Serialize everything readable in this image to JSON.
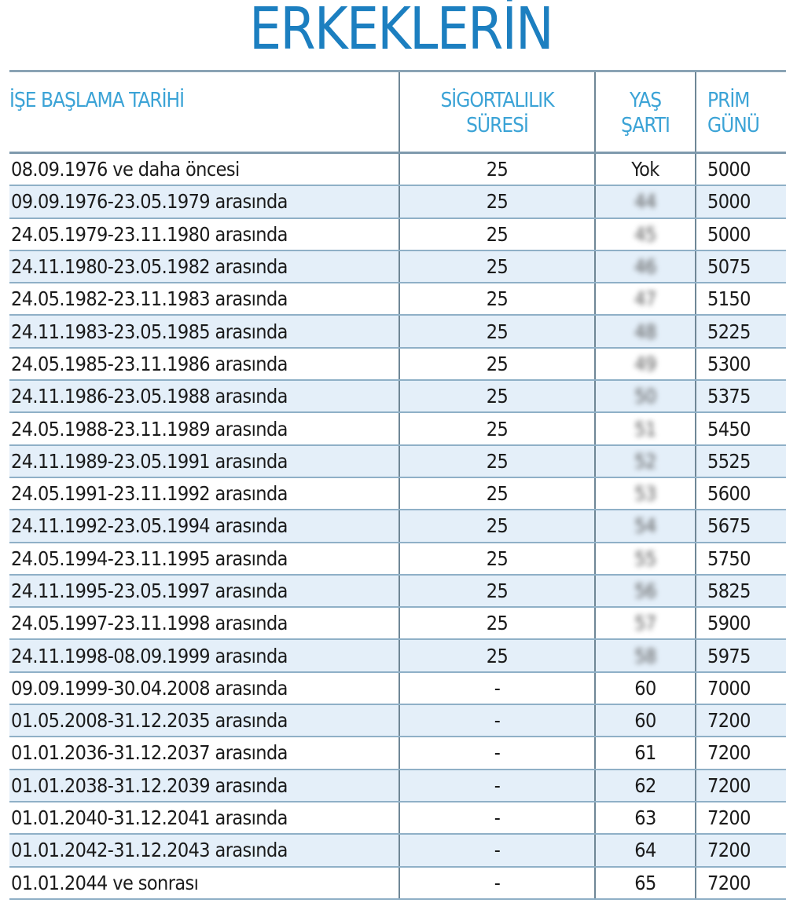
{
  "title": "ERKEKLERİN",
  "headers": {
    "start_date": "İŞE BAŞLAMA TARİHİ",
    "insurance_l1": "SİGORTALILIK",
    "insurance_l2": "SÜRESİ",
    "age_l1": "YAŞ",
    "age_l2": "ŞARTI",
    "premium_l1": "PRİM",
    "premium_l2": "GÜNÜ"
  },
  "rows": [
    {
      "date": "08.09.1976  ve daha öncesi",
      "years": "25",
      "age": "Yok",
      "days": "5000",
      "age_blurred": false
    },
    {
      "date": "09.09.1976-23.05.1979 arasında",
      "years": "25",
      "age": "44",
      "days": "5000",
      "age_blurred": true
    },
    {
      "date": "24.05.1979-23.11.1980 arasında",
      "years": "25",
      "age": "45",
      "days": "5000",
      "age_blurred": true
    },
    {
      "date": "24.11.1980-23.05.1982 arasında",
      "years": "25",
      "age": "46",
      "days": "5075",
      "age_blurred": true
    },
    {
      "date": "24.05.1982-23.11.1983 arasında",
      "years": "25",
      "age": "47",
      "days": "5150",
      "age_blurred": true
    },
    {
      "date": "24.11.1983-23.05.1985 arasında",
      "years": "25",
      "age": "48",
      "days": "5225",
      "age_blurred": true
    },
    {
      "date": "24.05.1985-23.11.1986 arasında",
      "years": "25",
      "age": "49",
      "days": "5300",
      "age_blurred": true
    },
    {
      "date": "24.11.1986-23.05.1988 arasında",
      "years": "25",
      "age": "50",
      "days": "5375",
      "age_blurred": true
    },
    {
      "date": "24.05.1988-23.11.1989 arasında",
      "years": "25",
      "age": "51",
      "days": "5450",
      "age_blurred": true
    },
    {
      "date": "24.11.1989-23.05.1991 arasında",
      "years": "25",
      "age": "52",
      "days": "5525",
      "age_blurred": true
    },
    {
      "date": "24.05.1991-23.11.1992 arasında",
      "years": "25",
      "age": "53",
      "days": "5600",
      "age_blurred": true
    },
    {
      "date": "24.11.1992-23.05.1994 arasında",
      "years": "25",
      "age": "54",
      "days": "5675",
      "age_blurred": true
    },
    {
      "date": "24.05.1994-23.11.1995 arasında",
      "years": "25",
      "age": "55",
      "days": "5750",
      "age_blurred": true
    },
    {
      "date": "24.11.1995-23.05.1997 arasında",
      "years": "25",
      "age": "56",
      "days": "5825",
      "age_blurred": true
    },
    {
      "date": "24.05.1997-23.11.1998 arasında",
      "years": "25",
      "age": "57",
      "days": "5900",
      "age_blurred": true
    },
    {
      "date": "24.11.1998-08.09.1999 arasında",
      "years": "25",
      "age": "58",
      "days": "5975",
      "age_blurred": true
    },
    {
      "date": "09.09.1999-30.04.2008 arasında",
      "years": "-",
      "age": "60",
      "days": "7000",
      "age_blurred": false
    },
    {
      "date": "01.05.2008-31.12.2035 arasında",
      "years": "-",
      "age": "60",
      "days": "7200",
      "age_blurred": false
    },
    {
      "date": "01.01.2036-31.12.2037 arasında",
      "years": "-",
      "age": "61",
      "days": "7200",
      "age_blurred": false
    },
    {
      "date": "01.01.2038-31.12.2039 arasında",
      "years": "-",
      "age": "62",
      "days": "7200",
      "age_blurred": false
    },
    {
      "date": "01.01.2040-31.12.2041 arasında",
      "years": "-",
      "age": "63",
      "days": "7200",
      "age_blurred": false
    },
    {
      "date": "01.01.2042-31.12.2043 arasında",
      "years": "-",
      "age": "64",
      "days": "7200",
      "age_blurred": false
    },
    {
      "date": "01.01.2044 ve sonrası",
      "years": "-",
      "age": "65",
      "days": "7200",
      "age_blurred": false
    }
  ]
}
